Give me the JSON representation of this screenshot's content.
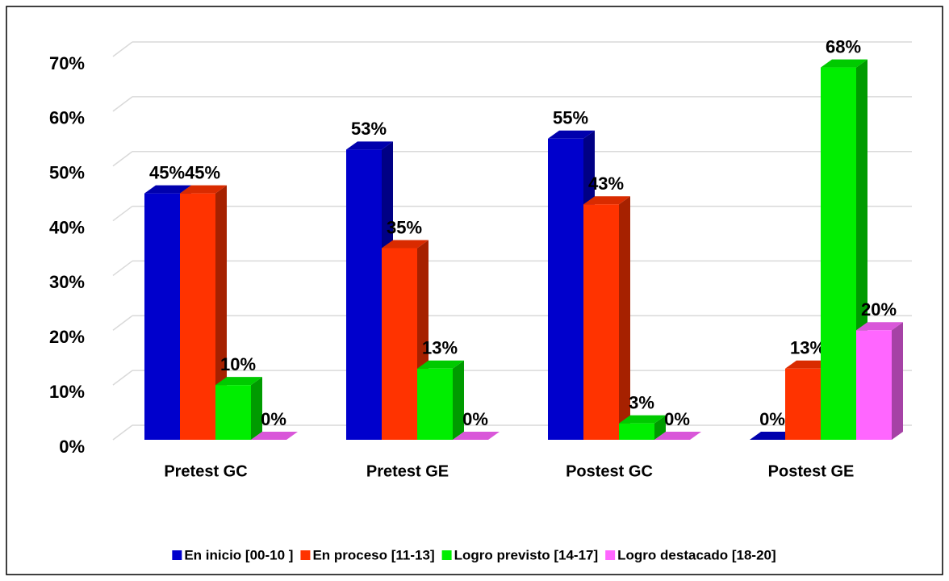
{
  "chart_data": {
    "type": "bar3d",
    "categories": [
      "Pretest GC",
      "Pretest GE",
      "Postest GC",
      "Postest GE"
    ],
    "series": [
      {
        "name": "En inicio [00-10 ]",
        "color": "#0000cc",
        "values": [
          45,
          53,
          55,
          0
        ],
        "value_labels": [
          "45%",
          "53%",
          "55%",
          "0%"
        ]
      },
      {
        "name": "En proceso [11-13]",
        "color": "#ff3300",
        "values": [
          45,
          35,
          43,
          13
        ],
        "value_labels": [
          "45%",
          "35%",
          "43%",
          "13%"
        ]
      },
      {
        "name": "Logro previsto [14-17]",
        "color": "#00ee00",
        "values": [
          10,
          13,
          3,
          68
        ],
        "value_labels": [
          "10%",
          "13%",
          "3%",
          "68%"
        ]
      },
      {
        "name": "Logro destacado [18-20]",
        "color": "#ff66ff",
        "values": [
          0,
          0,
          0,
          20
        ],
        "value_labels": [
          "0%",
          "0%",
          "0%",
          "20%"
        ]
      }
    ],
    "ylim": [
      0,
      70
    ],
    "yticks": [
      {
        "value": 0,
        "label": "0%"
      },
      {
        "value": 10,
        "label": "10%"
      },
      {
        "value": 20,
        "label": "20%"
      },
      {
        "value": 30,
        "label": "30%"
      },
      {
        "value": 40,
        "label": "40%"
      },
      {
        "value": 50,
        "label": "50%"
      },
      {
        "value": 60,
        "label": "60%"
      },
      {
        "value": 70,
        "label": "70%"
      }
    ],
    "grid": true,
    "legend": "bottom"
  }
}
